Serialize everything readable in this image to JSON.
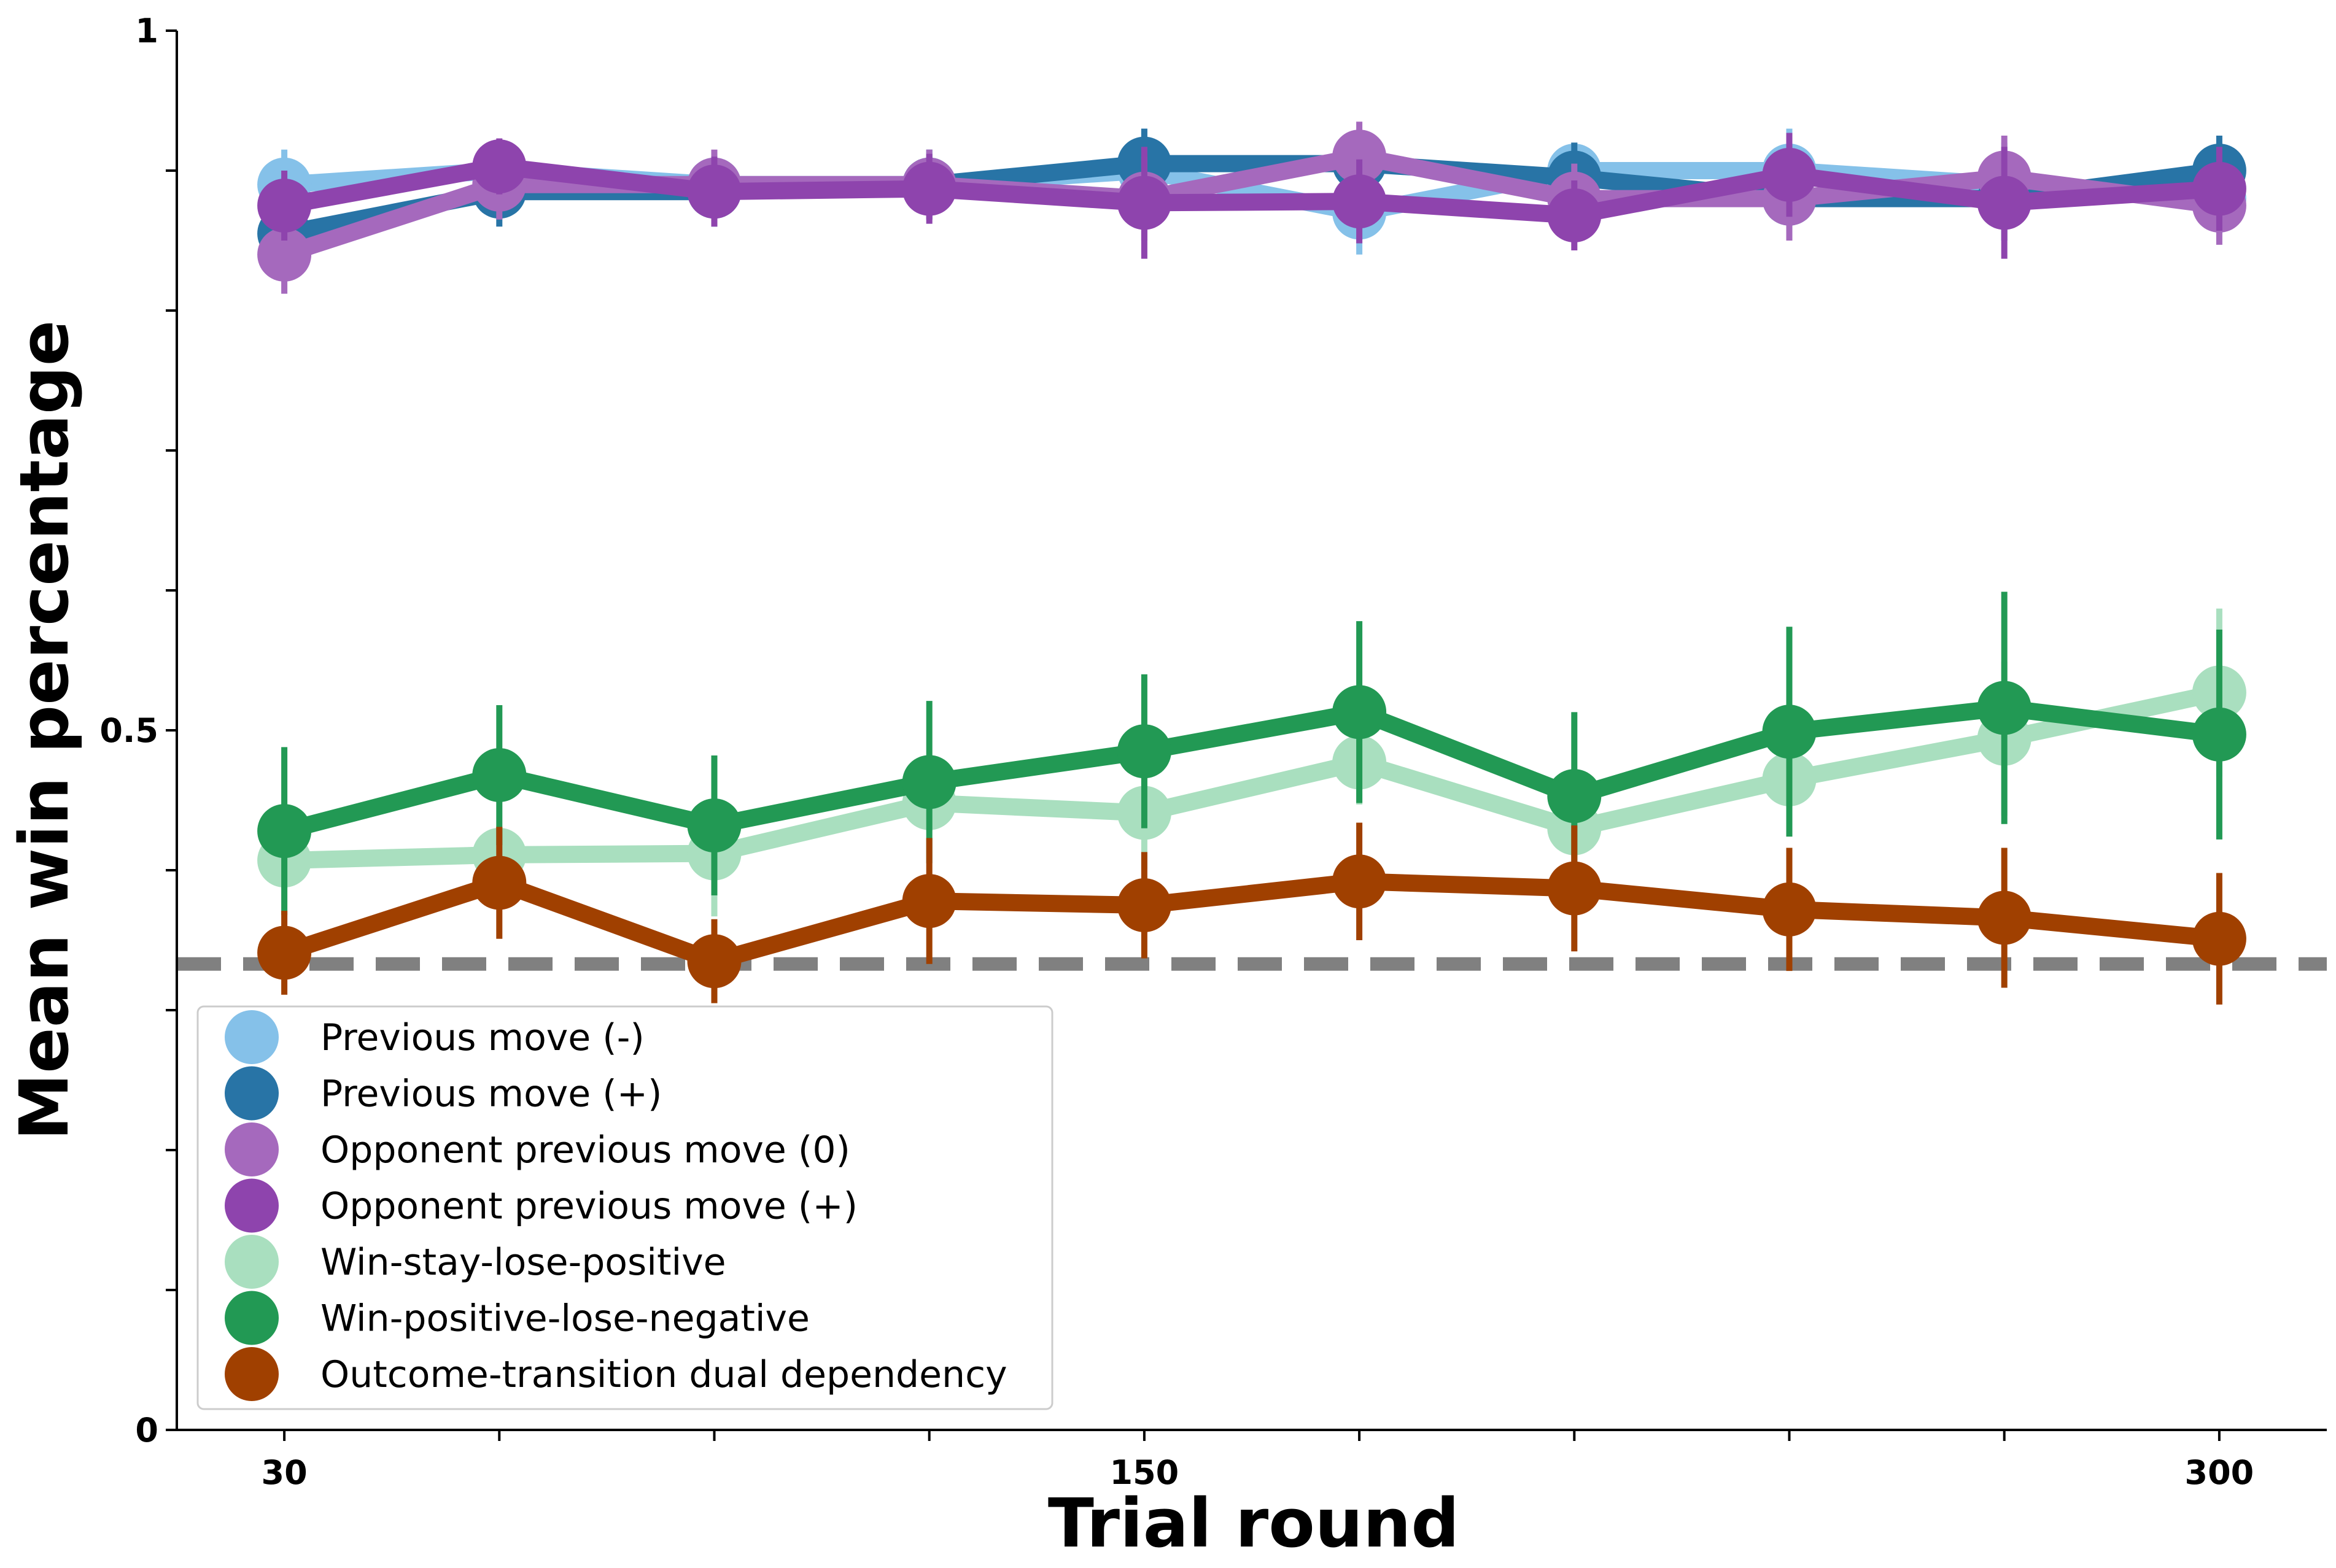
{
  "chart_data": {
    "type": "line",
    "xlabel": "Trial round",
    "ylabel": "Mean win percentage",
    "x": [
      30,
      60,
      90,
      120,
      150,
      180,
      210,
      240,
      270,
      300
    ],
    "xlim": [
      15,
      315
    ],
    "ylim": [
      0,
      1
    ],
    "x_ticks": [
      30,
      60,
      90,
      120,
      150,
      180,
      210,
      240,
      270,
      300
    ],
    "x_tick_labels": {
      "30": "30",
      "150": "150",
      "300": "300"
    },
    "y_ticks": [
      0,
      0.1,
      0.2,
      0.3,
      0.4,
      0.5,
      0.6,
      0.7,
      0.8,
      0.9,
      1
    ],
    "y_tick_labels": {
      "0": "0",
      "0.5": "0.5",
      "1": "1"
    },
    "reference_line": {
      "y": 0.333,
      "style": "dashed",
      "color": "#808080"
    },
    "grid": false,
    "legend_position": "lower-left",
    "series": [
      {
        "name": "Previous move (-)",
        "color": "#85C1E9",
        "values": [
          0.89,
          0.9,
          0.89,
          0.89,
          0.9,
          0.87,
          0.9,
          0.9,
          0.89,
          0.88
        ],
        "errors": [
          0.025,
          0.02,
          0.02,
          0.02,
          0.03,
          0.03,
          0.02,
          0.03,
          0.03,
          0.025
        ]
      },
      {
        "name": "Previous move (+)",
        "color": "#2874A6",
        "values": [
          0.855,
          0.885,
          0.885,
          0.89,
          0.905,
          0.905,
          0.895,
          0.88,
          0.88,
          0.9
        ],
        "errors": [
          0.03,
          0.025,
          0.025,
          0.025,
          0.025,
          0.02,
          0.025,
          0.03,
          0.03,
          0.025
        ]
      },
      {
        "name": "Opponent previous move (0)",
        "color": "#A569BD",
        "values": [
          0.84,
          0.89,
          0.89,
          0.89,
          0.88,
          0.91,
          0.88,
          0.88,
          0.895,
          0.875
        ],
        "errors": [
          0.028,
          0.025,
          0.025,
          0.025,
          0.03,
          0.025,
          0.025,
          0.03,
          0.03,
          0.028
        ]
      },
      {
        "name": "Opponent previous move (+)",
        "color": "#8E44AD",
        "values": [
          0.875,
          0.903,
          0.885,
          0.887,
          0.877,
          0.878,
          0.868,
          0.897,
          0.877,
          0.887
        ],
        "errors": [
          0.025,
          0.02,
          0.025,
          0.025,
          0.04,
          0.03,
          0.025,
          0.03,
          0.04,
          0.03
        ]
      },
      {
        "name": "Win-stay-lose-positive",
        "color": "#A9DFBF",
        "values": [
          0.407,
          0.411,
          0.412,
          0.448,
          0.441,
          0.477,
          0.43,
          0.465,
          0.494,
          0.527
        ],
        "errors": [
          0.02,
          0.02,
          0.045,
          0.02,
          0.04,
          0.03,
          0.02,
          0.04,
          0.055,
          0.06
        ]
      },
      {
        "name": "Win-positive-lose-negative",
        "color": "#229954",
        "values": [
          0.428,
          0.468,
          0.432,
          0.463,
          0.485,
          0.513,
          0.453,
          0.499,
          0.516,
          0.497
        ],
        "errors": [
          0.06,
          0.05,
          0.05,
          0.058,
          0.055,
          0.065,
          0.06,
          0.075,
          0.083,
          0.075
        ]
      },
      {
        "name": "Outcome-transition dual dependency",
        "color": "#A04000",
        "values": [
          0.341,
          0.391,
          0.335,
          0.378,
          0.375,
          0.392,
          0.387,
          0.372,
          0.366,
          0.351
        ],
        "errors": [
          0.03,
          0.04,
          0.03,
          0.045,
          0.038,
          0.042,
          0.045,
          0.044,
          0.05,
          0.047
        ]
      }
    ]
  }
}
